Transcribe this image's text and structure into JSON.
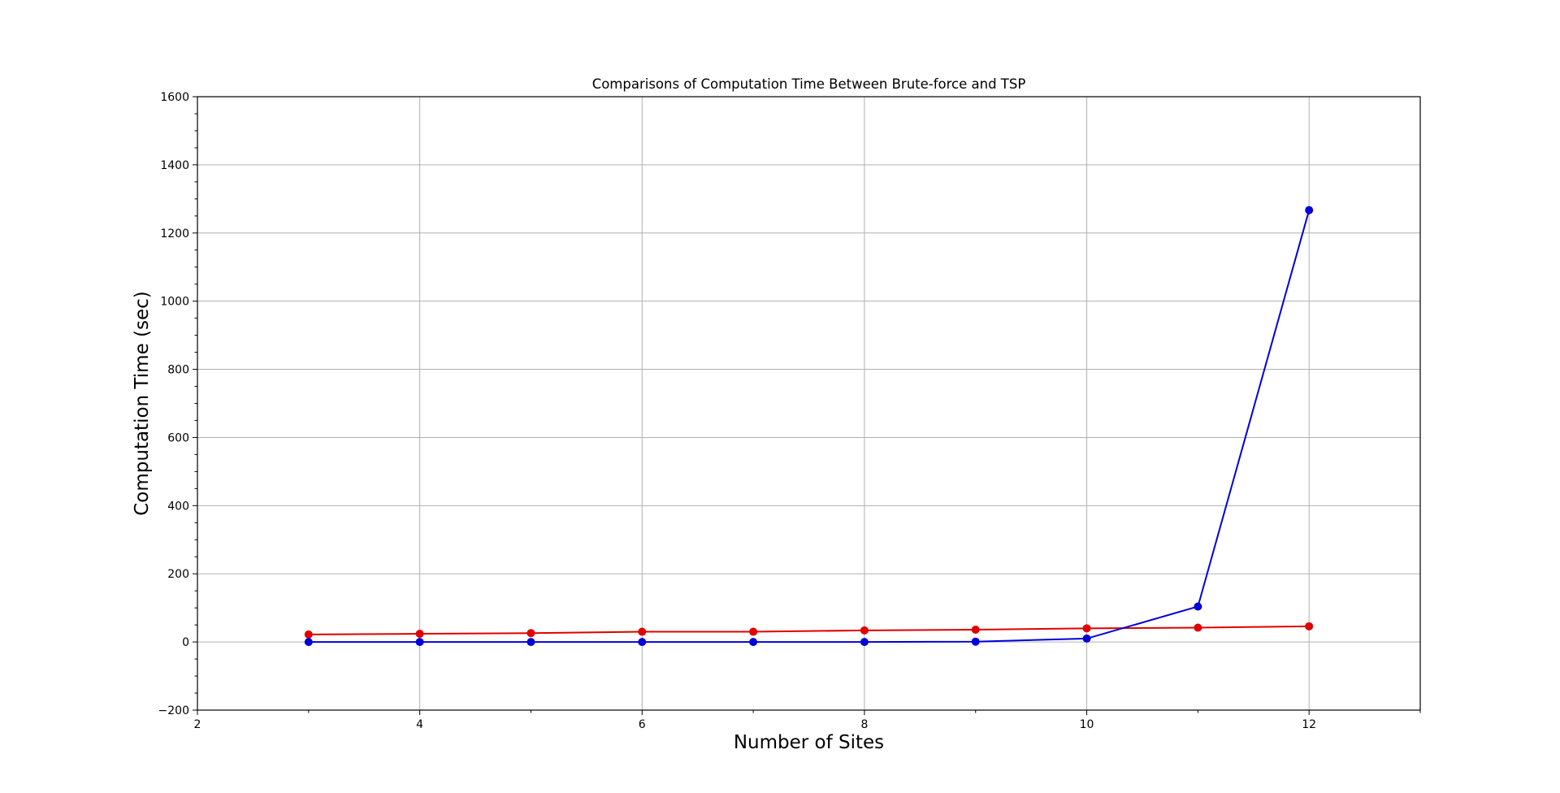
{
  "chart_data": {
    "type": "line",
    "title": "Comparisons of Computation Time Between Brute-force and TSP",
    "xlabel": "Number of Sites",
    "ylabel": "Computation Time (sec)",
    "xlim": [
      2,
      13
    ],
    "ylim": [
      -200,
      1600
    ],
    "x_ticks": [
      2,
      4,
      6,
      8,
      10,
      12
    ],
    "y_ticks": [
      -200,
      0,
      200,
      400,
      600,
      800,
      1000,
      1200,
      1400,
      1600
    ],
    "grid": true,
    "legend": "none",
    "x": [
      3,
      4,
      5,
      6,
      7,
      8,
      9,
      10,
      11,
      12
    ],
    "series": [
      {
        "color": "#e00000",
        "values": [
          22,
          24,
          26,
          30,
          30,
          34,
          36,
          40,
          42,
          46
        ]
      },
      {
        "color": "#0000d8",
        "values": [
          0,
          0,
          0,
          0,
          0,
          0,
          1,
          10,
          104,
          1267
        ]
      }
    ]
  }
}
